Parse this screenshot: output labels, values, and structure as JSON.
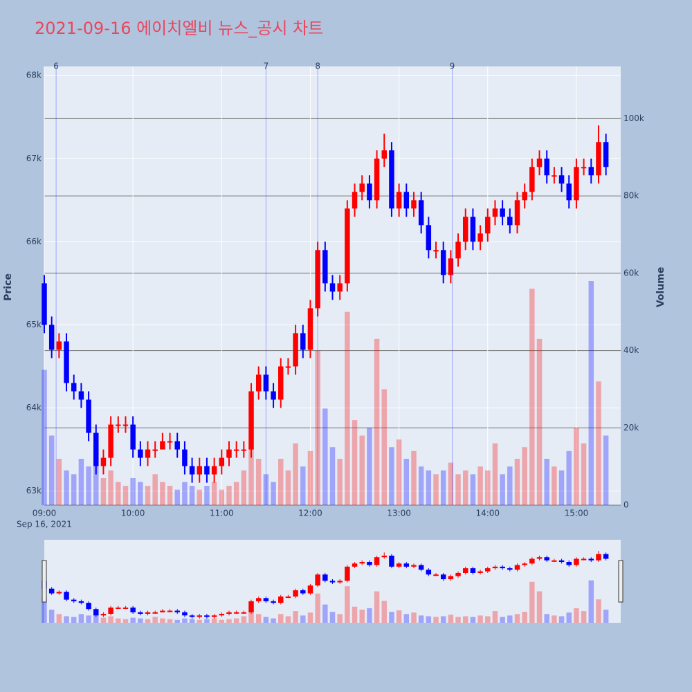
{
  "chart_data": {
    "type": "candlestick",
    "title": "2021-09-16 에이치엘비 뉴스_공시 차트",
    "title_color": "#e8475e",
    "y_label": "Price",
    "y2_label": "Volume",
    "x_date_label": "Sep 16, 2021",
    "increasing_color": "#ff0000",
    "decreasing_color": "#0000ff",
    "x": [
      "09:00",
      "09:05",
      "09:10",
      "09:15",
      "09:20",
      "09:25",
      "09:30",
      "09:35",
      "09:40",
      "09:45",
      "09:50",
      "09:55",
      "10:00",
      "10:05",
      "10:10",
      "10:15",
      "10:20",
      "10:25",
      "10:30",
      "10:35",
      "10:40",
      "10:45",
      "10:50",
      "10:55",
      "11:00",
      "11:05",
      "11:10",
      "11:15",
      "11:20",
      "11:25",
      "11:30",
      "11:35",
      "11:40",
      "11:45",
      "11:50",
      "11:55",
      "12:00",
      "12:05",
      "12:10",
      "12:15",
      "12:20",
      "12:25",
      "12:30",
      "12:35",
      "12:40",
      "12:45",
      "12:50",
      "12:55",
      "13:00",
      "13:05",
      "13:10",
      "13:15",
      "13:20",
      "13:25",
      "13:30",
      "13:35",
      "13:40",
      "13:45",
      "13:50",
      "13:55",
      "14:00",
      "14:05",
      "14:10",
      "14:15",
      "14:20",
      "14:25",
      "14:30",
      "14:35",
      "14:40",
      "14:45",
      "14:50",
      "14:55",
      "15:00",
      "15:05",
      "15:10",
      "15:15",
      "15:20"
    ],
    "open": [
      65500,
      65000,
      64700,
      64800,
      64300,
      64200,
      64100,
      63700,
      63300,
      63400,
      63800,
      63800,
      63800,
      63500,
      63400,
      63500,
      63500,
      63600,
      63600,
      63500,
      63300,
      63200,
      63300,
      63200,
      63300,
      63400,
      63500,
      63500,
      63500,
      64200,
      64400,
      64200,
      64100,
      64500,
      64500,
      64900,
      64700,
      65200,
      65900,
      65500,
      65400,
      65500,
      66400,
      66600,
      66700,
      66500,
      67000,
      67100,
      66400,
      66600,
      66400,
      66500,
      66200,
      65900,
      65900,
      65600,
      65800,
      66000,
      66300,
      66000,
      66100,
      66300,
      66400,
      66300,
      66200,
      66500,
      66600,
      66900,
      67000,
      66800,
      66800,
      66700,
      66500,
      66900,
      66900,
      66800,
      67200
    ],
    "high": [
      65600,
      65100,
      64900,
      64900,
      64400,
      64300,
      64200,
      63800,
      63500,
      63900,
      63900,
      63900,
      63900,
      63600,
      63600,
      63600,
      63700,
      63700,
      63700,
      63600,
      63400,
      63400,
      63400,
      63400,
      63500,
      63600,
      63600,
      63600,
      64300,
      64500,
      64500,
      64300,
      64600,
      64600,
      65000,
      65000,
      65300,
      66000,
      66000,
      65600,
      65600,
      66500,
      66700,
      66800,
      66800,
      67100,
      67300,
      67200,
      66700,
      66700,
      66600,
      66600,
      66300,
      66000,
      66000,
      65900,
      66100,
      66400,
      66400,
      66200,
      66400,
      66500,
      66500,
      66400,
      66600,
      66700,
      67000,
      67100,
      67100,
      66900,
      66900,
      66800,
      67000,
      67000,
      67000,
      67400,
      67300
    ],
    "low": [
      64900,
      64600,
      64600,
      64200,
      64100,
      64000,
      63600,
      63200,
      63200,
      63300,
      63700,
      63700,
      63400,
      63300,
      63300,
      63400,
      63500,
      63500,
      63400,
      63200,
      63100,
      63100,
      63100,
      63100,
      63200,
      63300,
      63400,
      63400,
      63400,
      64100,
      64100,
      64000,
      64000,
      64400,
      64400,
      64600,
      64600,
      65100,
      65400,
      65300,
      65300,
      65400,
      66300,
      66500,
      66400,
      66400,
      66900,
      66300,
      66300,
      66300,
      66300,
      66100,
      65800,
      65800,
      65500,
      65500,
      65700,
      65900,
      65900,
      65900,
      66000,
      66200,
      66200,
      66100,
      66100,
      66400,
      66500,
      66800,
      66700,
      66700,
      66600,
      66400,
      66400,
      66800,
      66700,
      66700,
      66800
    ],
    "close": [
      65000,
      64700,
      64800,
      64300,
      64200,
      64100,
      63700,
      63300,
      63400,
      63800,
      63800,
      63800,
      63500,
      63400,
      63500,
      63500,
      63600,
      63600,
      63500,
      63300,
      63200,
      63300,
      63200,
      63300,
      63400,
      63500,
      63500,
      63500,
      64200,
      64400,
      64200,
      64100,
      64500,
      64500,
      64900,
      64700,
      65200,
      65900,
      65500,
      65400,
      65500,
      66400,
      66600,
      66700,
      66500,
      67000,
      67100,
      66400,
      66600,
      66400,
      66500,
      66200,
      65900,
      65900,
      65600,
      65800,
      66000,
      66300,
      66000,
      66100,
      66300,
      66400,
      66300,
      66200,
      66500,
      66600,
      66900,
      67000,
      66800,
      66800,
      66700,
      66500,
      66900,
      66900,
      66800,
      67200,
      66900
    ],
    "volume": [
      35000,
      18000,
      12000,
      9000,
      8000,
      12000,
      10000,
      14000,
      7000,
      9000,
      6000,
      5000,
      7000,
      6000,
      5000,
      8000,
      6000,
      5000,
      4000,
      6000,
      5000,
      4000,
      5000,
      6000,
      4000,
      5000,
      6000,
      9000,
      15000,
      12000,
      8000,
      6000,
      12000,
      9000,
      16000,
      10000,
      14000,
      40000,
      25000,
      15000,
      12000,
      50000,
      22000,
      18000,
      20000,
      43000,
      30000,
      15000,
      17000,
      12000,
      14000,
      10000,
      9000,
      8000,
      9000,
      11000,
      8000,
      9000,
      8000,
      10000,
      9000,
      16000,
      8000,
      10000,
      12000,
      15000,
      56000,
      43000,
      12000,
      10000,
      9000,
      14000,
      20000,
      16000,
      58000,
      32000,
      18000
    ],
    "xlim": [
      "09:00",
      "15:30"
    ],
    "xticks": [
      "09:00",
      "10:00",
      "11:00",
      "12:00",
      "13:00",
      "14:00",
      "15:00"
    ],
    "ylim": [
      62830,
      68110
    ],
    "yticks": [
      {
        "value": 63000,
        "label": "63k"
      },
      {
        "value": 64000,
        "label": "64k"
      },
      {
        "value": 65000,
        "label": "65k"
      },
      {
        "value": 66000,
        "label": "66k"
      },
      {
        "value": 67000,
        "label": "67k"
      },
      {
        "value": 68000,
        "label": "68k"
      }
    ],
    "y2lim": [
      0,
      113500
    ],
    "y2ticks": [
      0,
      {
        "value": 20000,
        "label": "20k"
      },
      {
        "value": 40000,
        "label": "40k"
      },
      {
        "value": 60000,
        "label": "60k"
      },
      {
        "value": 80000,
        "label": "80k"
      },
      {
        "value": 100000,
        "label": "100k"
      }
    ],
    "events": [
      {
        "x": "09:08",
        "label": "6"
      },
      {
        "x": "11:30",
        "label": "7"
      },
      {
        "x": "12:05",
        "label": "8"
      },
      {
        "x": "13:36",
        "label": "9"
      }
    ],
    "range_slider": true
  }
}
